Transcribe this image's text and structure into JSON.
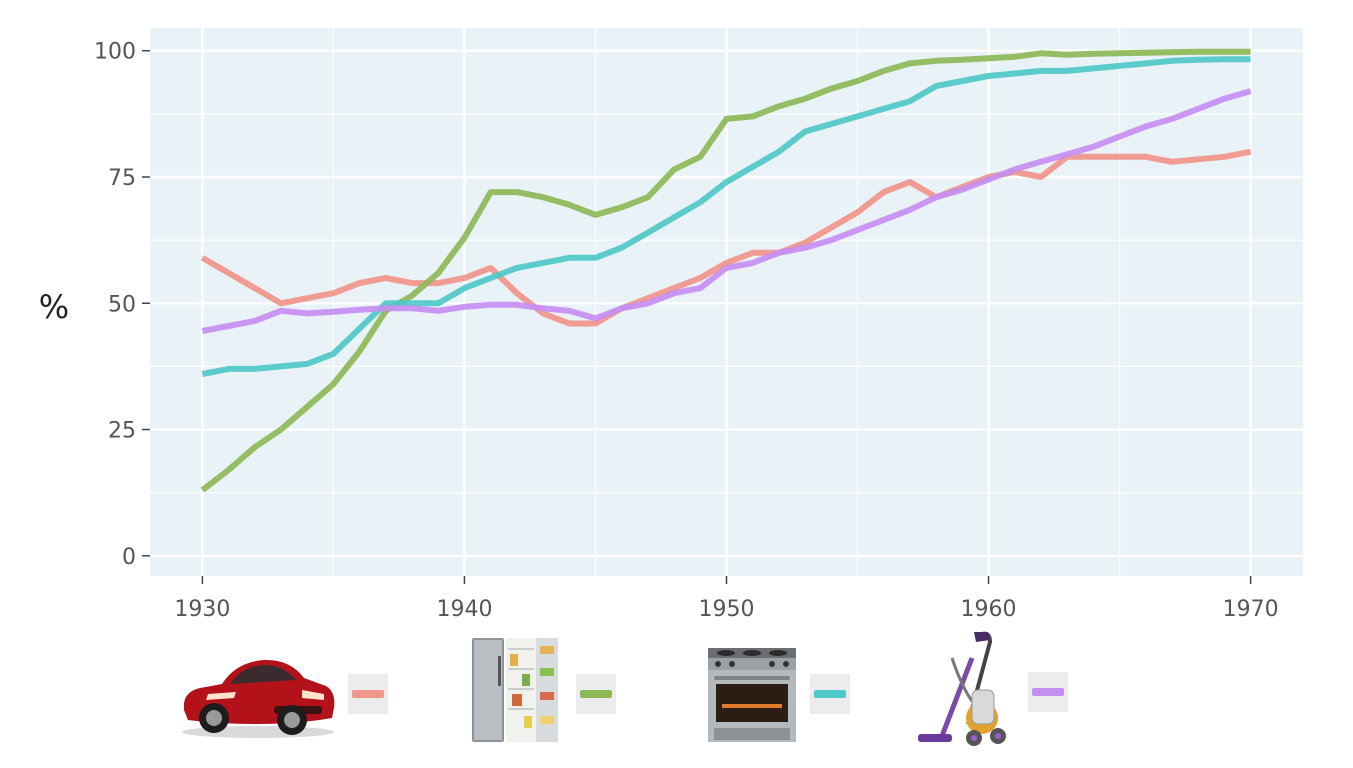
{
  "chart_data": {
    "type": "line",
    "ylabel": "%",
    "xlabel": "",
    "title": "",
    "xlim": [
      1928,
      1972
    ],
    "ylim": [
      -4,
      104.5
    ],
    "xticks": [
      "1930",
      "1940",
      "1950",
      "1960",
      "1970"
    ],
    "yticks": [
      "0",
      "25",
      "50",
      "75",
      "100"
    ],
    "grid": true,
    "legend_placement": "bottom",
    "x": [
      1930,
      1931,
      1932,
      1933,
      1934,
      1935,
      1936,
      1937,
      1938,
      1939,
      1940,
      1941,
      1942,
      1943,
      1944,
      1945,
      1946,
      1947,
      1948,
      1949,
      1950,
      1951,
      1952,
      1953,
      1954,
      1955,
      1956,
      1957,
      1958,
      1959,
      1960,
      1961,
      1962,
      1963,
      1964,
      1965,
      1966,
      1967,
      1968,
      1969,
      1970
    ],
    "series": [
      {
        "icon": "car-icon",
        "color": "#f0958a",
        "values": [
          59,
          56,
          53,
          50,
          51,
          52,
          54,
          55,
          54,
          54,
          55,
          57,
          52,
          48,
          46,
          46,
          49,
          51,
          53,
          55,
          58,
          60,
          60,
          62,
          65,
          68,
          72,
          74,
          71,
          73,
          75,
          76,
          75,
          79,
          79,
          79,
          79,
          78,
          78.5,
          79,
          80
        ]
      },
      {
        "icon": "refrigerator-icon",
        "color": "#8db856",
        "values": [
          13,
          17,
          21.5,
          25,
          29.5,
          34,
          40.5,
          48.5,
          51.5,
          56,
          63,
          72,
          72,
          71,
          69.5,
          67.5,
          69,
          71,
          76.5,
          79,
          86.5,
          87,
          89,
          90.5,
          92.5,
          94,
          96,
          97.5,
          98,
          98.2,
          98.5,
          98.8,
          99.5,
          99.2,
          99.4,
          99.5,
          99.6,
          99.7,
          99.8,
          99.8,
          99.8
        ]
      },
      {
        "icon": "stove-icon",
        "color": "#4ec9c7",
        "values": [
          36,
          37,
          37,
          37.5,
          38,
          40,
          45,
          50,
          50,
          50,
          53,
          55,
          57,
          58,
          59,
          59,
          61,
          64,
          67,
          70,
          74,
          77,
          80,
          84,
          85.5,
          87,
          88.5,
          90,
          93,
          94,
          95,
          95.5,
          96,
          96,
          96.5,
          97,
          97.5,
          98,
          98.2,
          98.3,
          98.3
        ]
      },
      {
        "icon": "vacuum-icon",
        "color": "#c58ff2",
        "values": [
          44.5,
          45.5,
          46.5,
          48.5,
          48,
          48.3,
          48.7,
          49,
          49,
          48.5,
          49.3,
          49.7,
          49.7,
          49,
          48.5,
          47,
          49,
          50,
          52,
          53,
          57,
          58,
          60,
          61,
          62.5,
          64.5,
          66.5,
          68.5,
          71,
          72.5,
          74.5,
          76.5,
          78,
          79.5,
          81,
          83,
          85,
          86.5,
          88.5,
          90.5,
          92
        ]
      }
    ]
  },
  "legend": [
    {
      "item": "car",
      "icon": "car-icon",
      "color": "#f0958a"
    },
    {
      "item": "refrigerator",
      "icon": "refrigerator-icon",
      "color": "#8db856"
    },
    {
      "item": "stove",
      "icon": "stove-icon",
      "color": "#4ec9c7"
    },
    {
      "item": "vacuum",
      "icon": "vacuum-icon",
      "color": "#c58ff2"
    }
  ],
  "colors": {
    "panel": "#e9f2f7",
    "grid": "#ffffff"
  }
}
